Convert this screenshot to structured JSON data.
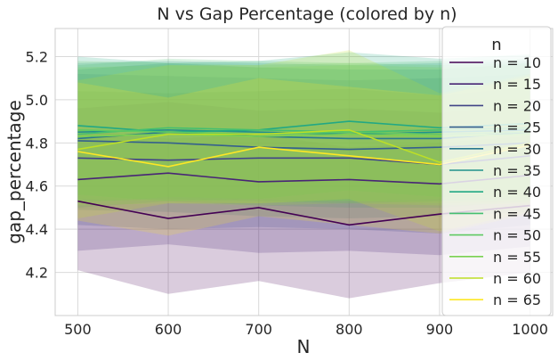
{
  "chart_data": {
    "type": "line",
    "title": "N vs Gap Percentage (colored by n)",
    "xlabel": "N",
    "ylabel": "gap_percentage",
    "x": [
      500,
      600,
      700,
      800,
      900,
      1000
    ],
    "xlim": [
      475,
      1025
    ],
    "ylim": [
      4.0,
      5.33
    ],
    "xticks": [
      500,
      600,
      700,
      800,
      900,
      1000
    ],
    "yticks": [
      4.2,
      4.4,
      4.6,
      4.8,
      5.0,
      5.2
    ],
    "grid": true,
    "legend": {
      "title": "n",
      "position": "right"
    },
    "band_opacity": 0.2,
    "series": [
      {
        "name": "n = 10",
        "color": "#440154",
        "values": [
          4.53,
          4.45,
          4.5,
          4.42,
          4.47,
          4.51
        ],
        "band_low": [
          4.21,
          4.1,
          4.16,
          4.08,
          4.15,
          4.2
        ],
        "band_high": [
          4.86,
          4.82,
          4.84,
          4.78,
          4.8,
          4.83
        ]
      },
      {
        "name": "n = 15",
        "color": "#482576",
        "values": [
          4.63,
          4.66,
          4.62,
          4.63,
          4.61,
          4.65
        ],
        "band_low": [
          4.3,
          4.33,
          4.29,
          4.3,
          4.28,
          4.32
        ],
        "band_high": [
          4.96,
          4.99,
          4.95,
          4.96,
          4.94,
          4.98
        ]
      },
      {
        "name": "n = 20",
        "color": "#414487",
        "values": [
          4.73,
          4.72,
          4.73,
          4.73,
          4.7,
          4.74
        ],
        "band_low": [
          4.42,
          4.4,
          4.41,
          4.4,
          4.38,
          4.42
        ],
        "band_high": [
          5.04,
          5.03,
          5.04,
          5.05,
          5.02,
          5.06
        ]
      },
      {
        "name": "n = 25",
        "color": "#35608d",
        "values": [
          4.81,
          4.8,
          4.78,
          4.77,
          4.78,
          4.8
        ],
        "band_low": [
          4.49,
          4.48,
          4.46,
          4.45,
          4.46,
          4.48
        ],
        "band_high": [
          5.12,
          5.11,
          5.1,
          5.09,
          5.1,
          5.12
        ]
      },
      {
        "name": "n = 30",
        "color": "#2a788e",
        "values": [
          4.82,
          4.85,
          4.83,
          4.82,
          4.82,
          4.85
        ],
        "band_low": [
          4.5,
          4.53,
          4.51,
          4.5,
          4.5,
          4.53
        ],
        "band_high": [
          5.14,
          5.17,
          5.15,
          5.14,
          5.14,
          5.17
        ]
      },
      {
        "name": "n = 35",
        "color": "#21918c",
        "values": [
          4.85,
          4.86,
          4.85,
          4.84,
          4.85,
          4.86
        ],
        "band_low": [
          4.53,
          4.54,
          4.53,
          4.52,
          4.53,
          4.54
        ],
        "band_high": [
          5.17,
          5.18,
          5.17,
          5.16,
          5.17,
          5.18
        ]
      },
      {
        "name": "n = 40",
        "color": "#22a884",
        "values": [
          4.88,
          4.85,
          4.86,
          4.9,
          4.87,
          4.89
        ],
        "band_low": [
          4.56,
          4.53,
          4.54,
          4.58,
          4.55,
          4.57
        ],
        "band_high": [
          5.2,
          5.17,
          5.18,
          5.22,
          5.19,
          5.21
        ]
      },
      {
        "name": "n = 45",
        "color": "#44bf70",
        "values": [
          4.84,
          4.87,
          4.86,
          4.85,
          4.86,
          4.87
        ],
        "band_low": [
          4.52,
          4.55,
          4.54,
          4.53,
          4.54,
          4.55
        ],
        "band_high": [
          5.16,
          5.19,
          5.18,
          5.17,
          5.18,
          5.19
        ]
      },
      {
        "name": "n = 50",
        "color": "#5ec962",
        "values": [
          4.86,
          4.85,
          4.84,
          4.85,
          4.84,
          4.85
        ],
        "band_low": [
          4.54,
          4.53,
          4.52,
          4.53,
          4.52,
          4.53
        ],
        "band_high": [
          5.18,
          5.17,
          5.16,
          5.17,
          5.16,
          5.17
        ]
      },
      {
        "name": "n = 55",
        "color": "#7ad151",
        "values": [
          4.83,
          4.84,
          4.83,
          4.84,
          4.83,
          4.84
        ],
        "band_low": [
          4.51,
          4.52,
          4.51,
          4.52,
          4.51,
          4.52
        ],
        "band_high": [
          5.15,
          5.16,
          5.15,
          5.16,
          5.15,
          5.16
        ]
      },
      {
        "name": "n = 60",
        "color": "#bddf26",
        "values": [
          4.77,
          4.84,
          4.84,
          4.86,
          4.71,
          4.8
        ],
        "band_low": [
          4.45,
          4.52,
          4.52,
          4.54,
          4.39,
          4.48
        ],
        "band_high": [
          5.09,
          5.16,
          5.16,
          5.23,
          5.03,
          5.12
        ]
      },
      {
        "name": "n = 65",
        "color": "#fde725",
        "values": [
          4.76,
          4.69,
          4.78,
          4.74,
          4.7,
          4.79
        ],
        "band_low": [
          4.44,
          4.37,
          4.46,
          4.42,
          4.38,
          4.47
        ],
        "band_high": [
          5.08,
          5.01,
          5.1,
          5.06,
          5.02,
          5.11
        ]
      }
    ]
  }
}
